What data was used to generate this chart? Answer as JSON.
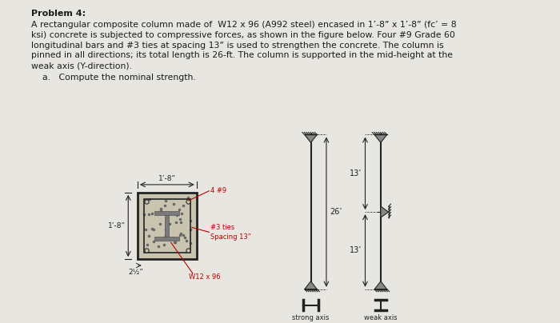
{
  "bg_color": "#e8e6e0",
  "text_color": "#1a1a1a",
  "title": "Problem 4:",
  "line1": "A rectangular composite column made of  W12 x 96 (A992 steel) encased in 1’-8” x 1’-8” (fc’ = 8",
  "line2": "ksi) concrete is subjected to compressive forces, as shown in the figure below. Four #9 Grade 60",
  "line3": "longitudinal bars and #3 ties at spacing 13” is used to strengthen the concrete. The column is",
  "line4": "pinned in all directions; its total length is 26-ft. The column is supported in the mid-height at the",
  "line5": "weak axis (Y-direction).",
  "sub_text": "a.   Compute the nominal strength.",
  "label_1_8h": "1’-8”",
  "label_1_8v": "1’-8”",
  "label_2_5": "2½”",
  "label_4_9": "4 #9",
  "label_3ties": "#3 ties\nSpacing 13”",
  "label_w12x96": "W12 x 96",
  "label_26": "26’",
  "label_13top": "13’",
  "label_13bot": "13’",
  "label_strong": "strong axis",
  "label_weak": "weak axis",
  "red_color": "#bb0000",
  "dark_color": "#222222",
  "gray_col": "#888888",
  "concrete_color": "#c8c4b0",
  "steel_color": "#7a7a7a"
}
